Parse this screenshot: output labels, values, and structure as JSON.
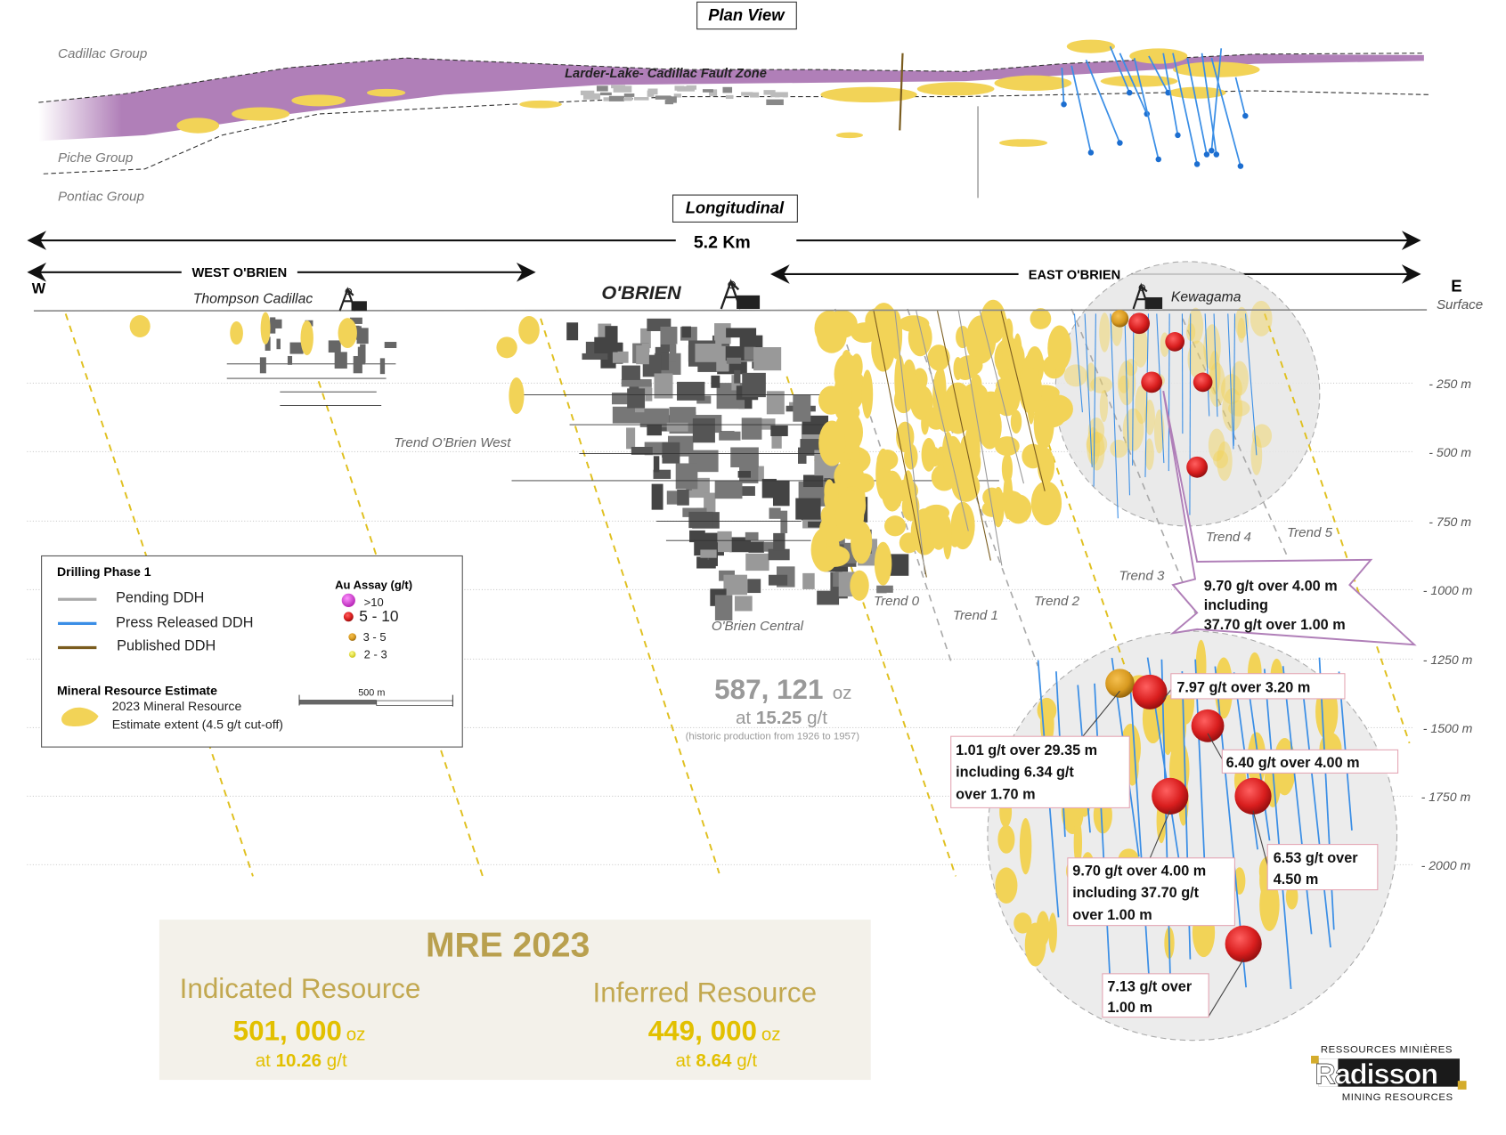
{
  "plan_view": {
    "title": "Plan View",
    "labels": {
      "cadillac": "Cadillac Group",
      "piche": "Piche Group",
      "pontiac": "Pontiac Group",
      "fault": "Larder-Lake- Cadillac Fault Zone"
    }
  },
  "longitudinal": {
    "title": "Longitudinal",
    "length": "5.2 Km",
    "west_zone": "WEST O'BRIEN",
    "east_zone": "EAST O'BRIEN",
    "west": "W",
    "east": "E",
    "surface": "Surface",
    "sites": {
      "thompson": "Thompson Cadillac",
      "obrien": "O'BRIEN",
      "kewagama": "Kewagama"
    },
    "depth_labels": [
      "- 250 m",
      "- 500 m",
      "- 750 m",
      "- 1000 m",
      "- 1250 m",
      "- 1500 m",
      "- 1750 m",
      "- 2000 m"
    ],
    "trends": {
      "obrien_west": "Trend O'Brien West",
      "t0": "Trend 0",
      "t1": "Trend 1",
      "t2": "Trend 2",
      "t3": "Trend 3",
      "t4": "Trend 4",
      "t5": "Trend 5",
      "central": "O'Brien Central"
    }
  },
  "callouts": {
    "main": [
      "9.70 g/t over 4.00 m",
      "including",
      "37.70 g/t over 1.00 m"
    ],
    "c1": [
      "7.97 g/t over 3.20 m"
    ],
    "c2": [
      "1.01 g/t over 29.35 m",
      "including 6.34 g/t",
      "over 1.70 m"
    ],
    "c3": [
      "6.40 g/t over 4.00 m"
    ],
    "c4": [
      "6.53 g/t over",
      "4.50 m"
    ],
    "c5": [
      "9.70 g/t over 4.00 m",
      "including 37.70 g/t",
      "over 1.00 m"
    ],
    "c6": [
      "7.13 g/t over",
      "1.00 m"
    ]
  },
  "legend": {
    "drilling_title": "Drilling Phase 1",
    "pending": "Pending DDH",
    "press": "Press Released DDH",
    "published": "Published DDH",
    "assay_title": "Au Assay (g/t)",
    "assay": [
      ">10",
      "5 - 10",
      "3 - 5",
      "2 - 3"
    ],
    "mre_title": "Mineral Resource Estimate",
    "mre_line1": "2023 Mineral Resource",
    "mre_line2": "Estimate extent (4.5  g/t cut-off)",
    "scale": "500 m"
  },
  "historic": {
    "ounces": "587, 121",
    "unit": "oz",
    "at": "at",
    "grade": "15.25",
    "grade_unit": "g/t",
    "note": "(historic production from 1926 to 1957)"
  },
  "mre": {
    "title": "MRE 2023",
    "indicated": {
      "label": "Indicated Resource",
      "ounces": "501, 000",
      "unit": "oz",
      "at": "at",
      "grade": "10.26",
      "grade_unit": "g/t"
    },
    "inferred": {
      "label": "Inferred  Resource",
      "ounces": "449, 000",
      "unit": "oz",
      "at": "at",
      "grade": "8.64",
      "grade_unit": "g/t"
    }
  },
  "logo": {
    "top": "RESSOURCES MINIÈRES",
    "name": "Radisson",
    "bottom": "MINING RESOURCES"
  },
  "colors": {
    "fault_zone": "#b07fb8",
    "mineralization": "#f2d357",
    "press_released_ddh": "#3a8ee6",
    "pending_ddh": "#aaaaaa",
    "published_ddh": "#7a5c1e",
    "assay_gt10": "#d63ad6",
    "assay_5_10": "#d91e1e",
    "assay_3_5": "#d89a20",
    "assay_2_3": "#e8e030",
    "mre_title": "#b9a04e",
    "mre_value": "#e2c000"
  }
}
